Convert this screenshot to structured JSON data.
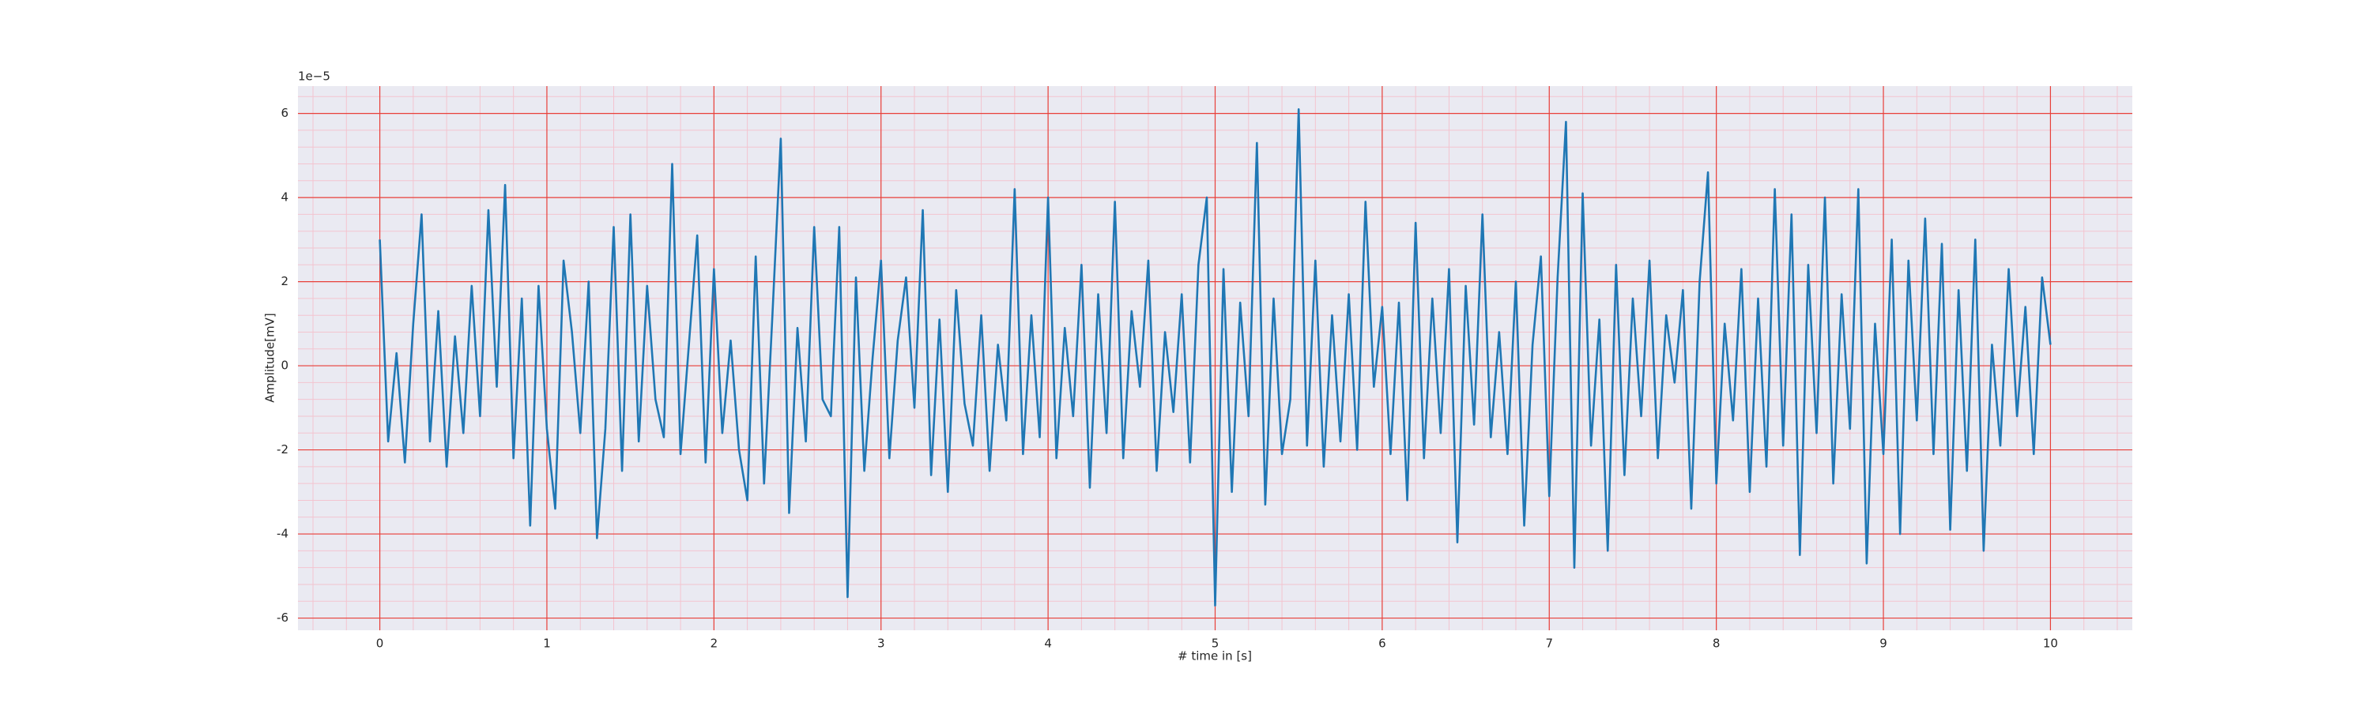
{
  "chart_data": {
    "type": "line",
    "xlabel": "# time in [s]",
    "ylabel": "Amplitude[mV]",
    "offset_label": "1e−5",
    "xlim": [
      -0.49,
      10.49
    ],
    "ylim": [
      -6.29,
      6.65
    ],
    "xticks": [
      0,
      1,
      2,
      3,
      4,
      5,
      6,
      7,
      8,
      9,
      10
    ],
    "yticks": [
      -6,
      -4,
      -2,
      0,
      2,
      4,
      6
    ],
    "grid": true,
    "minor_grid": true,
    "background": "#eaeaf2",
    "grid_color": "#e8403a",
    "minor_grid_color": "#f3c4cf",
    "x": [
      0,
      0.05,
      0.1,
      0.15,
      0.2,
      0.25,
      0.3,
      0.35,
      0.4,
      0.45,
      0.5,
      0.55,
      0.6,
      0.65,
      0.7,
      0.75,
      0.8,
      0.85,
      0.9,
      0.95,
      1,
      1.05,
      1.1,
      1.15,
      1.2,
      1.25,
      1.3,
      1.35,
      1.4,
      1.45,
      1.5,
      1.55,
      1.6,
      1.65,
      1.7,
      1.75,
      1.8,
      1.85,
      1.9,
      1.95,
      2,
      2.05,
      2.1,
      2.15,
      2.2,
      2.25,
      2.3,
      2.35,
      2.4,
      2.45,
      2.5,
      2.55,
      2.6,
      2.65,
      2.7,
      2.75,
      2.8,
      2.85,
      2.9,
      2.95,
      3,
      3.05,
      3.1,
      3.15,
      3.2,
      3.25,
      3.3,
      3.35,
      3.4,
      3.45,
      3.5,
      3.55,
      3.6,
      3.65,
      3.7,
      3.75,
      3.8,
      3.85,
      3.9,
      3.95,
      4,
      4.05,
      4.1,
      4.15,
      4.2,
      4.25,
      4.3,
      4.35,
      4.4,
      4.45,
      4.5,
      4.55,
      4.6,
      4.65,
      4.7,
      4.75,
      4.8,
      4.85,
      4.9,
      4.95,
      5,
      5.05,
      5.1,
      5.15,
      5.2,
      5.25,
      5.3,
      5.35,
      5.4,
      5.45,
      5.5,
      5.55,
      5.6,
      5.65,
      5.7,
      5.75,
      5.8,
      5.85,
      5.9,
      5.95,
      6,
      6.05,
      6.1,
      6.15,
      6.2,
      6.25,
      6.3,
      6.35,
      6.4,
      6.45,
      6.5,
      6.55,
      6.6,
      6.65,
      6.7,
      6.75,
      6.8,
      6.85,
      6.9,
      6.95,
      7,
      7.05,
      7.1,
      7.15,
      7.2,
      7.25,
      7.3,
      7.35,
      7.4,
      7.45,
      7.5,
      7.55,
      7.6,
      7.65,
      7.7,
      7.75,
      7.8,
      7.85,
      7.9,
      7.95,
      8,
      8.05,
      8.1,
      8.15,
      8.2,
      8.25,
      8.3,
      8.35,
      8.4,
      8.45,
      8.5,
      8.55,
      8.6,
      8.65,
      8.7,
      8.75,
      8.8,
      8.85,
      8.9,
      8.95,
      9,
      9.05,
      9.1,
      9.15,
      9.2,
      9.25,
      9.3,
      9.35,
      9.4,
      9.45,
      9.5,
      9.55,
      9.6,
      9.65,
      9.7,
      9.75,
      9.8,
      9.85,
      9.9,
      9.95,
      10
    ],
    "series": [
      {
        "color": "#1f77b4",
        "values": [
          3.0,
          -1.8,
          0.3,
          -2.3,
          1.0,
          3.6,
          -1.8,
          1.3,
          -2.4,
          0.7,
          -1.6,
          1.9,
          -1.2,
          3.7,
          -0.5,
          4.3,
          -2.2,
          1.6,
          -3.8,
          1.9,
          -1.5,
          -3.4,
          2.5,
          0.8,
          -1.6,
          2.0,
          -4.1,
          -1.5,
          3.3,
          -2.5,
          3.6,
          -1.8,
          1.9,
          -0.8,
          -1.7,
          4.8,
          -2.1,
          0.5,
          3.1,
          -2.3,
          2.3,
          -1.6,
          0.6,
          -2.0,
          -3.2,
          2.6,
          -2.8,
          1.2,
          5.4,
          -3.5,
          0.9,
          -1.8,
          3.3,
          -0.8,
          -1.2,
          3.3,
          -5.5,
          2.1,
          -2.5,
          0.2,
          2.5,
          -2.2,
          0.6,
          2.1,
          -1.0,
          3.7,
          -2.6,
          1.1,
          -3.0,
          1.8,
          -0.9,
          -1.9,
          1.2,
          -2.5,
          0.5,
          -1.3,
          4.2,
          -2.1,
          1.2,
          -1.7,
          4.0,
          -2.2,
          0.9,
          -1.2,
          2.4,
          -2.9,
          1.7,
          -1.6,
          3.9,
          -2.2,
          1.3,
          -0.5,
          2.5,
          -2.5,
          0.8,
          -1.1,
          1.7,
          -2.3,
          2.4,
          4.0,
          -5.7,
          2.3,
          -3.0,
          1.5,
          -1.2,
          5.3,
          -3.3,
          1.6,
          -2.1,
          -0.8,
          6.1,
          -1.9,
          2.5,
          -2.4,
          1.2,
          -1.8,
          1.7,
          -2.0,
          3.9,
          -0.5,
          1.4,
          -2.1,
          1.5,
          -3.2,
          3.4,
          -2.2,
          1.6,
          -1.6,
          2.3,
          -4.2,
          1.9,
          -1.4,
          3.6,
          -1.7,
          0.8,
          -2.1,
          2.0,
          -3.8,
          0.5,
          2.6,
          -3.1,
          2.1,
          5.8,
          -4.8,
          4.1,
          -1.9,
          1.1,
          -4.4,
          2.4,
          -2.6,
          1.6,
          -1.2,
          2.5,
          -2.2,
          1.2,
          -0.4,
          1.8,
          -3.4,
          2.0,
          4.6,
          -2.8,
          1.0,
          -1.3,
          2.3,
          -3.0,
          1.6,
          -2.4,
          4.2,
          -1.9,
          3.6,
          -4.5,
          2.4,
          -1.6,
          4.0,
          -2.8,
          1.7,
          -1.5,
          4.2,
          -4.7,
          1.0,
          -2.1,
          3.0,
          -4.0,
          2.5,
          -1.3,
          3.5,
          -2.1,
          2.9,
          -3.9,
          1.8,
          -2.5,
          3.0,
          -4.4,
          0.5,
          -1.9,
          2.3,
          -1.2,
          1.4,
          -2.1,
          2.1,
          0.5
        ]
      }
    ]
  }
}
